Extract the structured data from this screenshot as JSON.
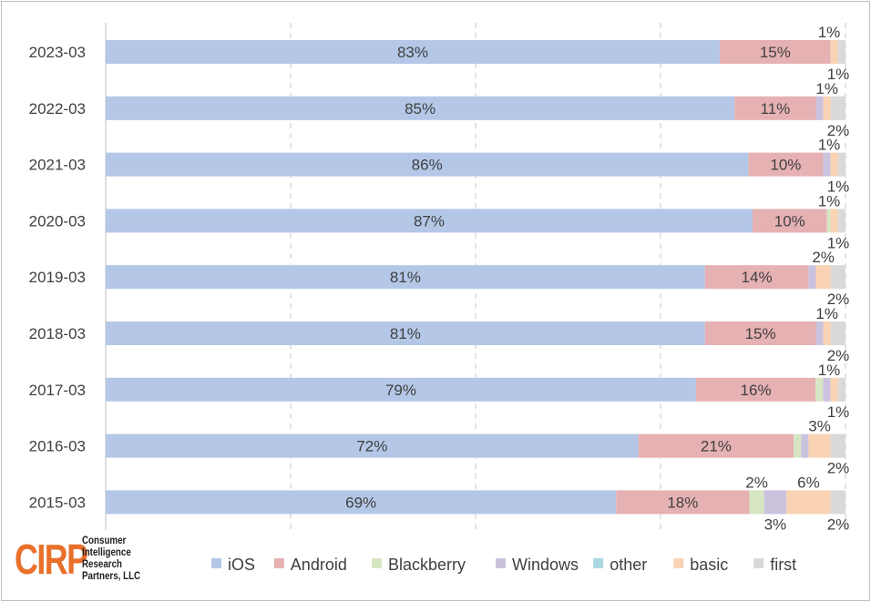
{
  "chart_data": {
    "type": "bar",
    "orientation": "horizontal",
    "stacked": "100%",
    "categories": [
      "2023-03",
      "2022-03",
      "2021-03",
      "2020-03",
      "2019-03",
      "2018-03",
      "2017-03",
      "2016-03",
      "2015-03"
    ],
    "series": [
      {
        "name": "iOS",
        "color": "#b4c7e7",
        "values": [
          83,
          85,
          86,
          87,
          81,
          81,
          79,
          72,
          69
        ]
      },
      {
        "name": "Android",
        "color": "#e6b1b3",
        "values": [
          15,
          11,
          10,
          10,
          14,
          15,
          16,
          21,
          18
        ]
      },
      {
        "name": "Blackberry",
        "color": "#d6e6c3",
        "values": [
          0,
          0,
          0,
          0.5,
          0,
          0,
          1,
          1,
          2
        ]
      },
      {
        "name": "Windows",
        "color": "#cbc2de",
        "values": [
          0,
          1,
          1,
          0,
          1,
          1,
          1,
          1,
          3
        ]
      },
      {
        "name": "other",
        "color": "#a9d8e2",
        "values": [
          0,
          0,
          0,
          0,
          0,
          0,
          0,
          0,
          0
        ]
      },
      {
        "name": "basic",
        "color": "#f9d3b3",
        "values": [
          1,
          1,
          1,
          1,
          2,
          1,
          1,
          3,
          6
        ]
      },
      {
        "name": "first",
        "color": "#d9d9d9",
        "values": [
          1,
          2,
          1,
          1,
          2,
          2,
          1,
          2,
          2
        ]
      }
    ],
    "data_labels": [
      [
        {
          "s": 0,
          "t": "83%"
        },
        {
          "s": 1,
          "t": "15%"
        },
        {
          "s": 5,
          "t": "1%",
          "pos": "above"
        },
        {
          "s": 6,
          "t": "1%",
          "pos": "below"
        }
      ],
      [
        {
          "s": 0,
          "t": "85%"
        },
        {
          "s": 1,
          "t": "11%"
        },
        {
          "s": 5,
          "t": "1%",
          "pos": "above"
        },
        {
          "s": 6,
          "t": "2%",
          "pos": "below"
        }
      ],
      [
        {
          "s": 0,
          "t": "86%"
        },
        {
          "s": 1,
          "t": "10%"
        },
        {
          "s": 5,
          "t": "1%",
          "pos": "above"
        },
        {
          "s": 6,
          "t": "1%",
          "pos": "below"
        }
      ],
      [
        {
          "s": 0,
          "t": "87%"
        },
        {
          "s": 1,
          "t": "10%"
        },
        {
          "s": 5,
          "t": "1%",
          "pos": "above"
        },
        {
          "s": 6,
          "t": "1%",
          "pos": "below"
        }
      ],
      [
        {
          "s": 0,
          "t": "81%"
        },
        {
          "s": 1,
          "t": "14%"
        },
        {
          "s": 5,
          "t": "2%",
          "pos": "above"
        },
        {
          "s": 6,
          "t": "2%",
          "pos": "below"
        }
      ],
      [
        {
          "s": 0,
          "t": "81%"
        },
        {
          "s": 1,
          "t": "15%"
        },
        {
          "s": 5,
          "t": "1%",
          "pos": "above"
        },
        {
          "s": 6,
          "t": "2%",
          "pos": "below"
        }
      ],
      [
        {
          "s": 0,
          "t": "79%"
        },
        {
          "s": 1,
          "t": "16%"
        },
        {
          "s": 5,
          "t": "1%",
          "pos": "above"
        },
        {
          "s": 6,
          "t": "1%",
          "pos": "below"
        }
      ],
      [
        {
          "s": 0,
          "t": "72%"
        },
        {
          "s": 1,
          "t": "21%"
        },
        {
          "s": 5,
          "t": "3%",
          "pos": "above"
        },
        {
          "s": 6,
          "t": "2%",
          "pos": "below"
        }
      ],
      [
        {
          "s": 0,
          "t": "69%"
        },
        {
          "s": 1,
          "t": "18%"
        },
        {
          "s": 2,
          "t": "2%",
          "pos": "above"
        },
        {
          "s": 3,
          "t": "3%",
          "pos": "below"
        },
        {
          "s": 5,
          "t": "6%",
          "pos": "above"
        },
        {
          "s": 6,
          "t": "2%",
          "pos": "below"
        }
      ]
    ],
    "xlim": [
      0,
      100
    ],
    "grid": "vertical-dashed",
    "legend": "bottom"
  },
  "logo": {
    "mark": "CIRP",
    "text": [
      "Consumer",
      "Intelligence",
      "Research",
      "Partners, LLC"
    ]
  }
}
